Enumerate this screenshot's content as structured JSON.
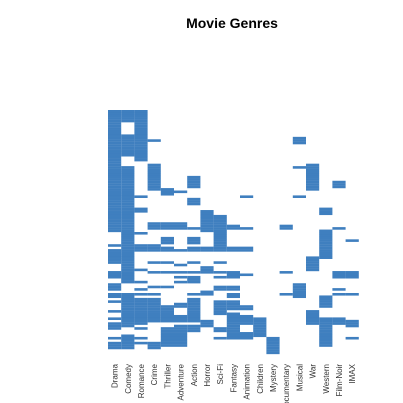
{
  "chart_data": {
    "type": "heatmap",
    "title": "Movie Genres",
    "xlabel": "",
    "ylabel": "",
    "grid": false,
    "legend": "none",
    "color": "#3f7fbf",
    "background": "#ffffff",
    "genres": [
      "Drama",
      "Comedy",
      "Romance",
      "Crime",
      "Thriller",
      "Adventure",
      "Action",
      "Horror",
      "Sci-Fi",
      "Fantasy",
      "Animation",
      "Children",
      "Mystery",
      "Documentary",
      "Musical",
      "War",
      "Western",
      "Film-Noir",
      "IMAX"
    ],
    "x_tick_labels": [
      "Drama",
      "Comedy",
      "Romance",
      "Crime",
      "Thriller",
      "Adventure",
      "Action",
      "Horror",
      "Sci-Fi",
      "Fantasy",
      "Animation",
      "Children",
      "Mystery",
      "ocumentary",
      "Musical",
      "War",
      "Western",
      "Film-Noir",
      "IMAX"
    ],
    "n_movies": 100,
    "marked_rows": [
      [
        0,
        1,
        2,
        3,
        4,
        5,
        6,
        7,
        8,
        9,
        10,
        11,
        12,
        13,
        14,
        15,
        16,
        17,
        18,
        19,
        20,
        21,
        22,
        23,
        24,
        25,
        26,
        27,
        28,
        29,
        30,
        31,
        32,
        33,
        34,
        35,
        36,
        37,
        38,
        39,
        40,
        41,
        42,
        43,
        44,
        45,
        46,
        47,
        48,
        49,
        55,
        57,
        58,
        59,
        60,
        61,
        62,
        66,
        67,
        68,
        71,
        72,
        73,
        75,
        76,
        78,
        82,
        85,
        87,
        88,
        89,
        93,
        95,
        96,
        97
      ],
      [
        0,
        1,
        2,
        3,
        4,
        10,
        11,
        12,
        13,
        14,
        15,
        16,
        17,
        18,
        23,
        24,
        25,
        26,
        27,
        28,
        29,
        30,
        31,
        32,
        33,
        34,
        35,
        36,
        37,
        38,
        39,
        40,
        41,
        42,
        43,
        44,
        45,
        46,
        47,
        48,
        49,
        50,
        51,
        52,
        53,
        54,
        55,
        56,
        57,
        58,
        59,
        60,
        61,
        62,
        63,
        64,
        65,
        66,
        67,
        68,
        69,
        70,
        75,
        76,
        77,
        78,
        79,
        80,
        81,
        82,
        83,
        84,
        85,
        86,
        87,
        88,
        92,
        93,
        94,
        95,
        96,
        97
      ],
      [
        0,
        1,
        2,
        3,
        4,
        5,
        6,
        7,
        8,
        9,
        10,
        11,
        12,
        13,
        14,
        15,
        16,
        17,
        18,
        19,
        20,
        35,
        40,
        41,
        50,
        55,
        56,
        57,
        65,
        70,
        73,
        75,
        77,
        78,
        79,
        80,
        81,
        82,
        83,
        84,
        85,
        86,
        87,
        89,
        93,
        95
      ],
      [
        12,
        22,
        23,
        24,
        25,
        26,
        27,
        28,
        29,
        30,
        31,
        32,
        46,
        47,
        48,
        55,
        56,
        57,
        62,
        66,
        72,
        75,
        77,
        78,
        79,
        80,
        81,
        82,
        83,
        84,
        85,
        86,
        95,
        96,
        97
      ],
      [
        32,
        33,
        34,
        46,
        47,
        48,
        52,
        53,
        54,
        56,
        57,
        62,
        66,
        72,
        80,
        81,
        82,
        83,
        84,
        85,
        86,
        89,
        90,
        91,
        92,
        93,
        94,
        95,
        96
      ],
      [
        33,
        46,
        47,
        48,
        57,
        63,
        66,
        68,
        70,
        79,
        80,
        84,
        85,
        86,
        88,
        89,
        90,
        91,
        92,
        93,
        94,
        95,
        96
      ],
      [
        27,
        28,
        29,
        30,
        31,
        36,
        37,
        38,
        48,
        52,
        53,
        54,
        56,
        57,
        62,
        66,
        68,
        69,
        70,
        75,
        77,
        78,
        79,
        80,
        81,
        82,
        83,
        84,
        85,
        86,
        88,
        89,
        90
      ],
      [
        41,
        42,
        43,
        44,
        45,
        46,
        47,
        48,
        49,
        56,
        57,
        64,
        65,
        66,
        74,
        75,
        86,
        87,
        88
      ],
      [
        43,
        44,
        45,
        46,
        47,
        48,
        49,
        50,
        51,
        52,
        53,
        54,
        55,
        56,
        57,
        62,
        66,
        68,
        72,
        73,
        78,
        79,
        80,
        81,
        82,
        83,
        89,
        90,
        93
      ],
      [
        47,
        48,
        56,
        57,
        66,
        67,
        68,
        72,
        73,
        75,
        76,
        78,
        79,
        80,
        81,
        83,
        84,
        85,
        86,
        87,
        88,
        89,
        90,
        91,
        92,
        93
      ],
      [
        35,
        48,
        56,
        57,
        67,
        80,
        81,
        84,
        85,
        86,
        87,
        91,
        92,
        93
      ],
      [
        85,
        86,
        87,
        88,
        89,
        90,
        91,
        92
      ],
      [
        93,
        94,
        95,
        96,
        97,
        98,
        99
      ],
      [
        47,
        48,
        66,
        75
      ],
      [
        11,
        12,
        13,
        23,
        35,
        71,
        72,
        73,
        74,
        75,
        76
      ],
      [
        22,
        23,
        24,
        25,
        26,
        27,
        28,
        29,
        30,
        31,
        32,
        60,
        61,
        62,
        63,
        64,
        65,
        82,
        83,
        84,
        85,
        86,
        87
      ],
      [
        40,
        41,
        42,
        49,
        50,
        51,
        52,
        53,
        54,
        55,
        56,
        57,
        58,
        59,
        60,
        76,
        77,
        78,
        79,
        80,
        85,
        86,
        87,
        88,
        89,
        90,
        91,
        92,
        93,
        94,
        95,
        96
      ],
      [
        29,
        30,
        31,
        48,
        66,
        67,
        68,
        73,
        75,
        85,
        86,
        87
      ],
      [
        53,
        66,
        67,
        68,
        75,
        86,
        87,
        88,
        93
      ]
    ]
  }
}
